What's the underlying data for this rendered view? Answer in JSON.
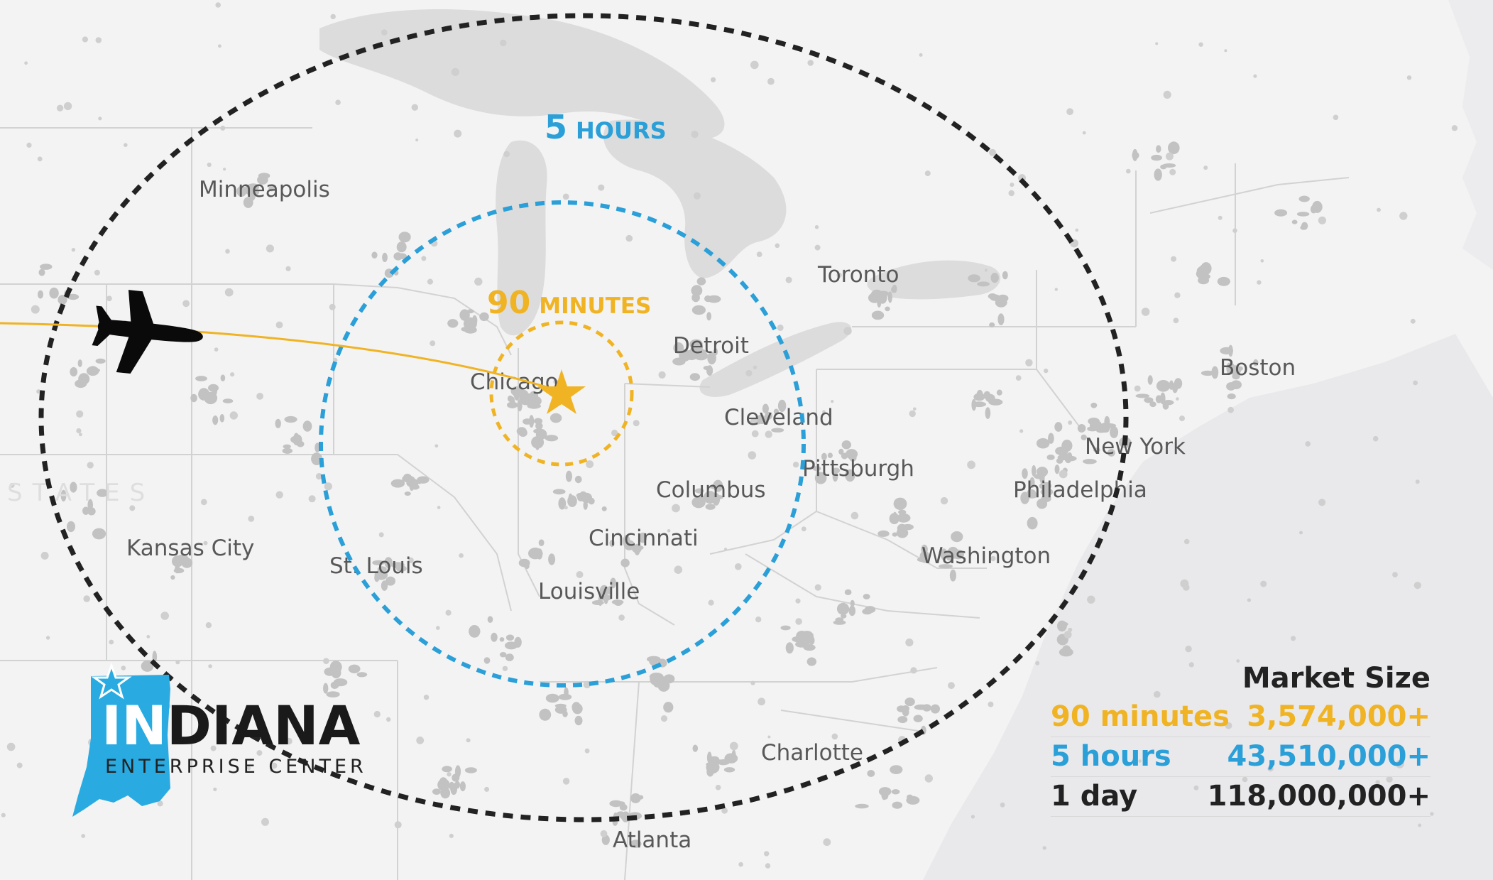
{
  "cities": [
    "Minneapolis",
    "Toronto",
    "Detroit",
    "Chicago",
    "Boston",
    "Cleveland",
    "New York",
    "Pittsburgh",
    "Columbus",
    "Philadelphia",
    "Cincinnati",
    "Kansas City",
    "St. Louis",
    "Washington",
    "Louisville",
    "Charlotte",
    "Atlanta"
  ],
  "country_watermark": "STATES",
  "rings": {
    "inner": {
      "label_number": "90",
      "label_unit": "MINUTES",
      "color": "#f0b323"
    },
    "middle": {
      "label_number": "5",
      "label_unit": "HOURS",
      "color": "#2a9fd8"
    },
    "outer": {
      "color": "#222222"
    }
  },
  "flight_path_color": "#f0b323",
  "origin_marker_color": "#f0b323",
  "logo": {
    "name_part1": "IN",
    "name_part2": "DIANA",
    "subtitle": "ENTERPRISE CENTER",
    "state_color": "#29abe2"
  },
  "market_size": {
    "title": "Market Size",
    "rows": [
      {
        "label": "90 minutes",
        "value": "3,574,000+",
        "color": "#f0b323"
      },
      {
        "label": "5 hours",
        "value": "43,510,000+",
        "color": "#2a9fd8"
      },
      {
        "label": "1 day",
        "value": "118,000,000+",
        "color": "#222222"
      }
    ]
  },
  "icons": [
    "airplane-icon",
    "star-icon"
  ]
}
